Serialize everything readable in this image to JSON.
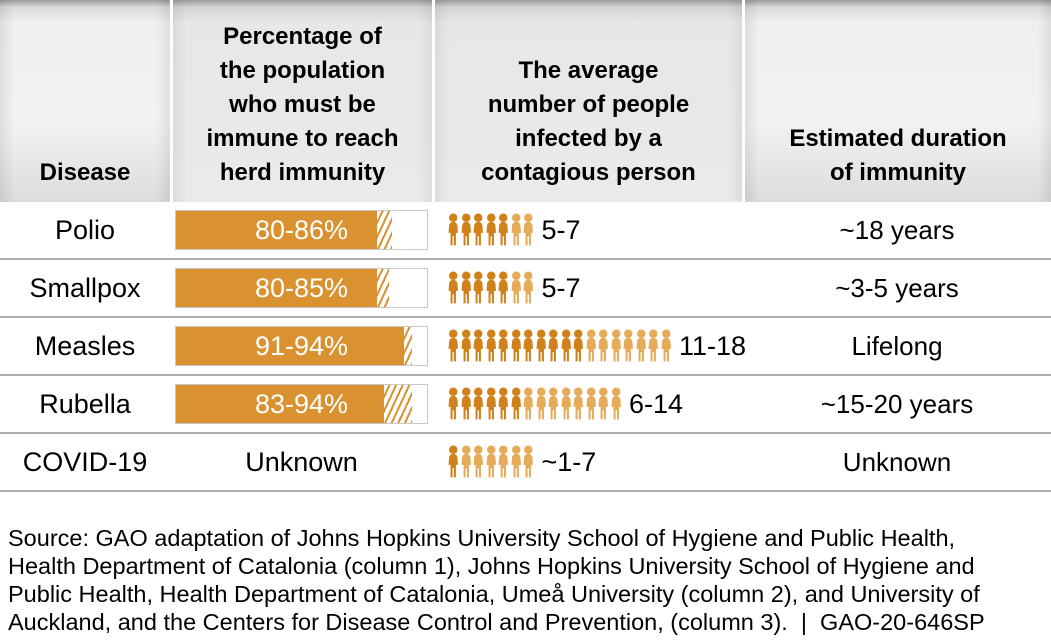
{
  "colors": {
    "bar_fill": "#d9922f",
    "bar_border": "#c9c9c9",
    "person_dark": "#d0811a",
    "person_light": "#e5ab58",
    "separator": "#adadad",
    "bar_label_text": "#ffffff",
    "text": "#000000"
  },
  "header": {
    "disease": "Disease",
    "herd_immunity": "Percentage of\nthe population\nwho must be\nimmune to reach\nherd immunity",
    "avg_infected": "The average\nnumber of people\ninfected by a\ncontagious person",
    "duration": "Estimated duration\nof immunity"
  },
  "chart_data": {
    "type": "table",
    "columns": [
      "Disease",
      "Percentage of the population who must be immune to reach herd immunity",
      "The average number of people infected by a contagious person",
      "Estimated duration of immunity"
    ],
    "bar_axis_range_pct": [
      0,
      100
    ],
    "rows": [
      {
        "disease": "Polio",
        "herd_immunity_pct": "80-86%",
        "herd_immunity_range": [
          80,
          86
        ],
        "avg_infected_label": "5-7",
        "avg_infected_range": [
          5,
          7
        ],
        "duration": "~18 years"
      },
      {
        "disease": "Smallpox",
        "herd_immunity_pct": "80-85%",
        "herd_immunity_range": [
          80,
          85
        ],
        "avg_infected_label": "5-7",
        "avg_infected_range": [
          5,
          7
        ],
        "duration": "~3-5 years"
      },
      {
        "disease": "Measles",
        "herd_immunity_pct": "91-94%",
        "herd_immunity_range": [
          91,
          94
        ],
        "avg_infected_label": "11-18",
        "avg_infected_range": [
          11,
          18
        ],
        "duration": "Lifelong"
      },
      {
        "disease": "Rubella",
        "herd_immunity_pct": "83-94%",
        "herd_immunity_range": [
          83,
          94
        ],
        "avg_infected_label": "6-14",
        "avg_infected_range": [
          6,
          14
        ],
        "duration": "~15-20 years"
      },
      {
        "disease": "COVID-19",
        "herd_immunity_pct": "Unknown",
        "herd_immunity_range": null,
        "avg_infected_label": "~1-7",
        "avg_infected_range": [
          1,
          7
        ],
        "duration": "Unknown"
      }
    ]
  },
  "source_lines": [
    "Source: GAO adaptation of Johns Hopkins University School of Hygiene and Public Health,",
    "Health Department of Catalonia (column 1), Johns Hopkins University School of Hygiene and",
    "Public Health, Health Department of Catalonia, Umeå University (column 2), and University of",
    "Auckland, and the Centers for Disease Control and Prevention, (column 3).  |  GAO-20-646SP"
  ]
}
